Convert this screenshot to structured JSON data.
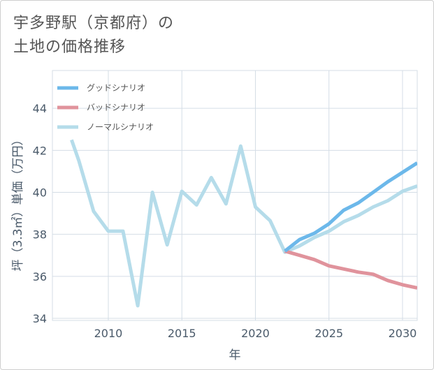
{
  "title": {
    "line1": "宇多野駅（京都府）の",
    "line2": "土地の価格推移"
  },
  "chart_data": {
    "type": "line",
    "title": "宇多野駅（京都府）の土地の価格推移",
    "xlabel": "年",
    "ylabel": "坪（3.3㎡）単価（万円）",
    "xlim": [
      2006.2,
      2031
    ],
    "ylim": [
      33.9,
      45.8
    ],
    "xticks": [
      2010,
      2015,
      2020,
      2025,
      2030
    ],
    "yticks": [
      34,
      36,
      38,
      40,
      42,
      44
    ],
    "grid": true,
    "legend_position": "top-left",
    "series": [
      {
        "name": "グッドシナリオ",
        "color": "#6cb8ea",
        "x": [
          2022,
          2023,
          2024,
          2025,
          2026,
          2027,
          2028,
          2029,
          2030,
          2031
        ],
        "y": [
          37.2,
          37.75,
          38.05,
          38.5,
          39.15,
          39.5,
          40.0,
          40.5,
          40.95,
          41.4
        ]
      },
      {
        "name": "バッドシナリオ",
        "color": "#e0939c",
        "x": [
          2022,
          2023,
          2024,
          2025,
          2026,
          2027,
          2028,
          2029,
          2030,
          2031
        ],
        "y": [
          37.2,
          37.0,
          36.8,
          36.5,
          36.35,
          36.2,
          36.1,
          35.8,
          35.6,
          35.45
        ]
      },
      {
        "name": "ノーマルシナリオ",
        "color": "#b5dcea",
        "x": [
          2007.5,
          2008,
          2009,
          2010,
          2011,
          2012,
          2013,
          2014,
          2015,
          2016,
          2017,
          2018,
          2019,
          2020,
          2021,
          2022,
          2023,
          2024,
          2025,
          2026,
          2027,
          2028,
          2029,
          2030,
          2031
        ],
        "y": [
          42.5,
          41.5,
          39.1,
          38.15,
          38.15,
          34.6,
          40.0,
          37.5,
          40.05,
          39.4,
          40.7,
          39.45,
          42.2,
          39.3,
          38.65,
          37.15,
          37.45,
          37.85,
          38.15,
          38.6,
          38.9,
          39.3,
          39.6,
          40.05,
          40.3
        ]
      }
    ]
  }
}
